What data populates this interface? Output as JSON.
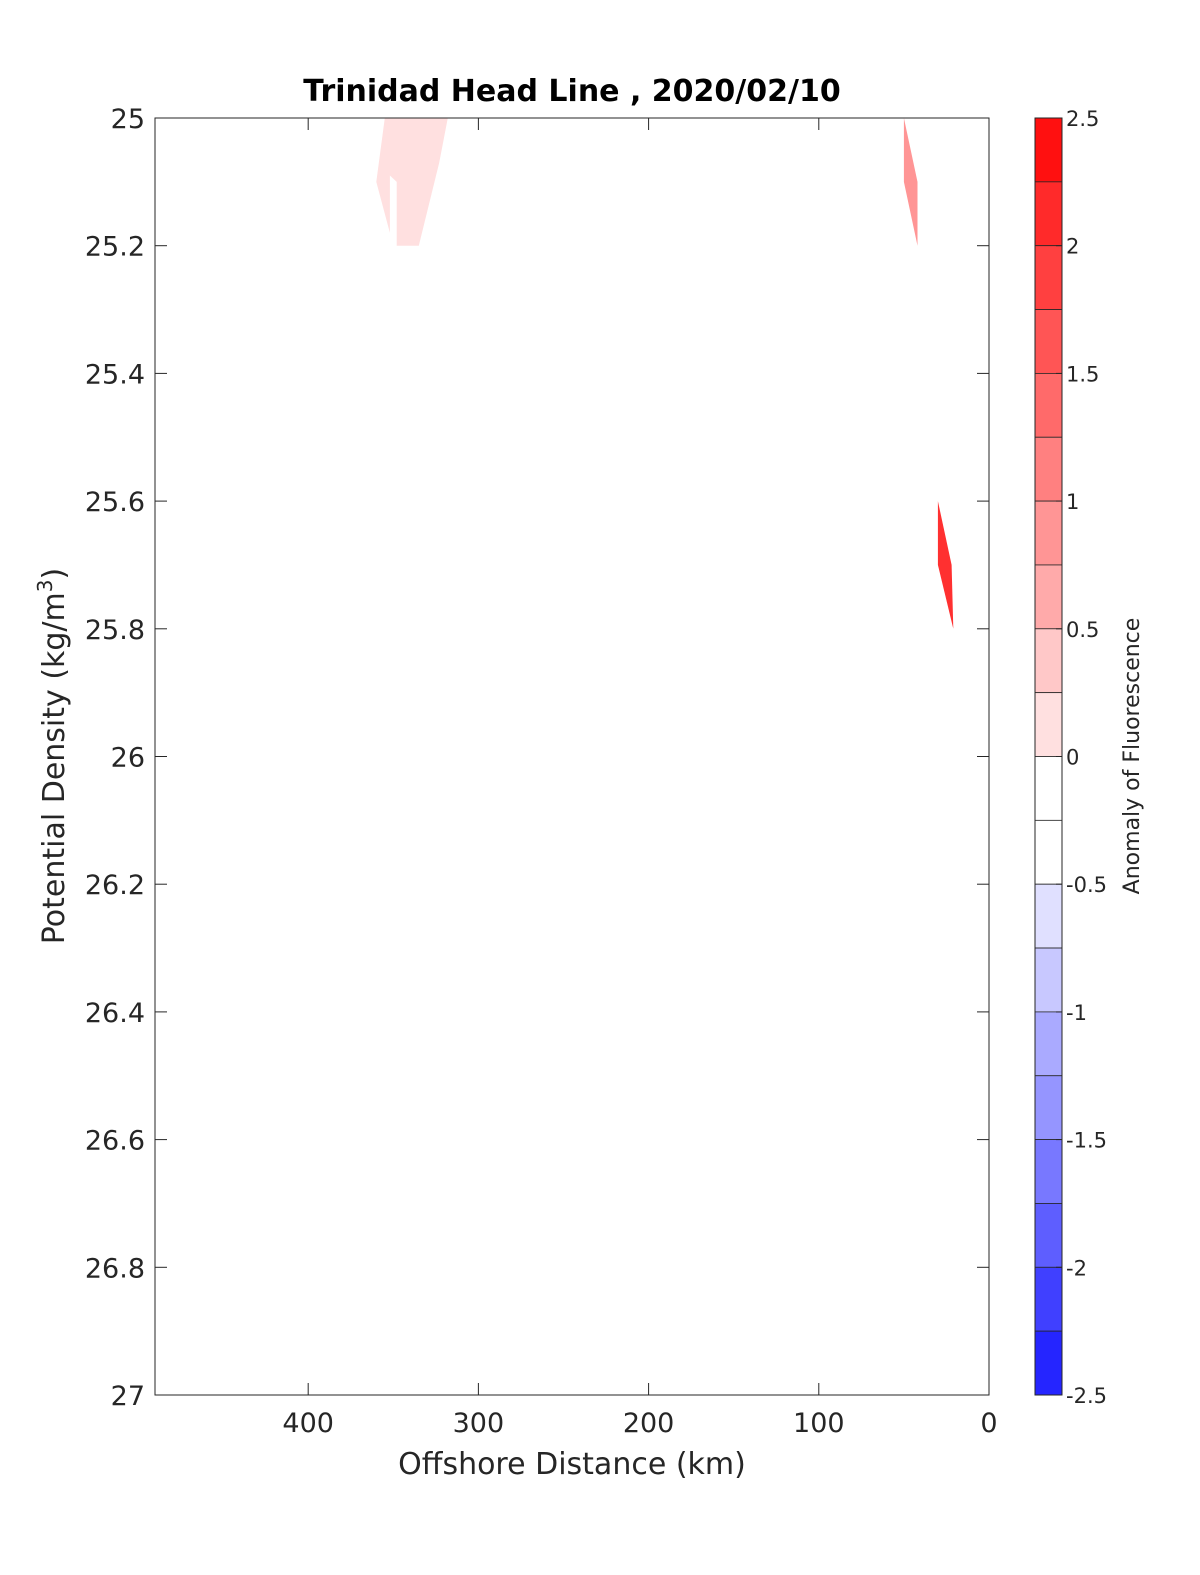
{
  "chart_data": {
    "type": "heatmap",
    "subtype": "filled-contour",
    "title": "Trinidad Head Line , 2020/02/10",
    "xlabel": "Offshore Distance (km)",
    "ylabel_main": "Potential Density (kg/m",
    "ylabel_sup": "3",
    "ylabel_close": ")",
    "xlim": [
      490,
      0
    ],
    "x_reversed": true,
    "ylim": [
      25,
      27
    ],
    "y_reversed": true,
    "x_ticks": [
      400,
      300,
      200,
      100,
      0
    ],
    "x_tick_labels": [
      "400",
      "300",
      "200",
      "100",
      "0"
    ],
    "y_ticks": [
      25,
      25.2,
      25.4,
      25.6,
      25.8,
      26,
      26.2,
      26.4,
      26.6,
      26.8,
      27
    ],
    "y_tick_labels": [
      "25",
      "25.2",
      "25.4",
      "25.6",
      "25.8",
      "26",
      "26.2",
      "26.4",
      "26.6",
      "26.8",
      "27"
    ],
    "grid": false,
    "colorbar": {
      "label": "Anomaly of Fluorescence",
      "clim": [
        -2.5,
        2.5
      ],
      "tick_values": [
        2.5,
        2,
        1.5,
        1,
        0.5,
        0,
        -0.5,
        -1,
        -1.5,
        -2,
        -2.5
      ],
      "tick_labels": [
        "2.5",
        "2",
        "1.5",
        "1",
        "0.5",
        "0",
        "-0.5",
        "-1",
        "-1.5",
        "-2",
        "-2.5"
      ],
      "levels": [
        2.5,
        2.25,
        2.0,
        1.75,
        1.5,
        1.25,
        1.0,
        0.75,
        0.5,
        0.25,
        0.0,
        -0.25,
        -0.5,
        -0.75,
        -1.0,
        -1.25,
        -1.5,
        -1.75,
        -2.0,
        -2.25,
        -2.5
      ],
      "band_colors": [
        "#ff1010",
        "#ff2a2a",
        "#ff4040",
        "#ff5555",
        "#ff6a6a",
        "#ff8080",
        "#ff9595",
        "#ffaaaa",
        "#ffc8c8",
        "#ffe0e0",
        "#ffffff",
        "#ffffff",
        "#e0e0ff",
        "#c8c8ff",
        "#aaaaff",
        "#9595ff",
        "#7878ff",
        "#5e5eff",
        "#4040ff",
        "#2525ff",
        "#0a0aff"
      ]
    },
    "contour_regions": [
      {
        "value_range": [
          0.25,
          0.5
        ],
        "color": "#ffe0e0",
        "points": [
          [
            355,
            25.0
          ],
          [
            318,
            25.0
          ],
          [
            323,
            25.07
          ],
          [
            335,
            25.2
          ],
          [
            348,
            25.2
          ],
          [
            348,
            25.1
          ],
          [
            352,
            25.09
          ],
          [
            352,
            25.18
          ],
          [
            360,
            25.1
          ]
        ]
      },
      {
        "value_range": [
          1.0,
          1.25
        ],
        "color": "#ff9595",
        "points": [
          [
            50,
            25.0
          ],
          [
            42,
            25.1
          ],
          [
            42,
            25.2
          ],
          [
            50,
            25.1
          ]
        ]
      },
      {
        "value_range": [
          2.0,
          2.25
        ],
        "color": "#ff3030",
        "points": [
          [
            30,
            25.6
          ],
          [
            22,
            25.7
          ],
          [
            21,
            25.8
          ],
          [
            30,
            25.7
          ]
        ]
      }
    ]
  }
}
